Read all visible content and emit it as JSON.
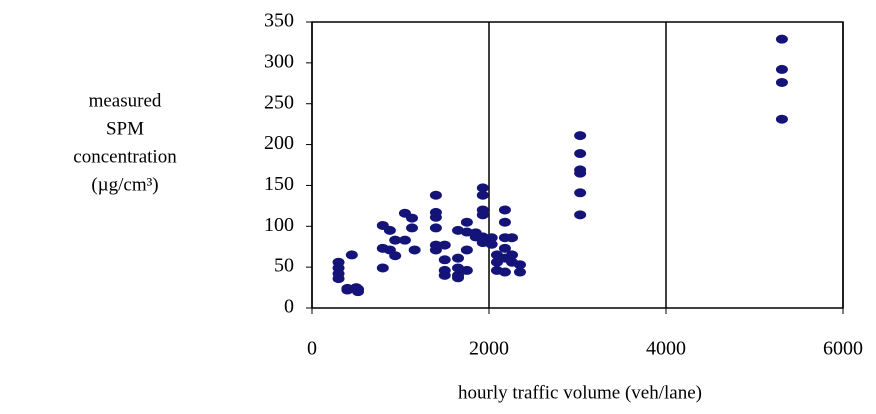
{
  "chart_data": {
    "type": "scatter",
    "y_label": [
      "measured",
      "SPM",
      "concentration",
      "(µg/cm³)"
    ],
    "x_label": "hourly traffic volume (veh/lane)",
    "color": "#141478",
    "x": [
      300,
      300,
      300,
      300,
      400,
      400,
      450,
      520,
      520,
      500,
      800,
      800,
      800,
      880,
      880,
      940,
      940,
      1050,
      1050,
      1130,
      1130,
      1160,
      1400,
      1400,
      1400,
      1400,
      1400,
      1400,
      1500,
      1500,
      1500,
      1500,
      1650,
      1650,
      1650,
      1650,
      1650,
      1750,
      1750,
      1750,
      1750,
      1850,
      1850,
      1930,
      1930,
      1930,
      1930,
      1930,
      1930,
      2030,
      2030,
      2090,
      2090,
      2090,
      2180,
      2180,
      2180,
      2180,
      2180,
      2180,
      2260,
      2260,
      2260,
      2350,
      2350,
      3030,
      3030,
      3030,
      3030,
      3030,
      3030,
      5310,
      5310,
      5310,
      5310
    ],
    "y": [
      56,
      49,
      42,
      36,
      24,
      22,
      65,
      23,
      20,
      25,
      101,
      73,
      49,
      95,
      71,
      64,
      83,
      116,
      83,
      110,
      98,
      71,
      138,
      117,
      111,
      98,
      77,
      71,
      59,
      46,
      40,
      77,
      95,
      61,
      49,
      40,
      37,
      105,
      93,
      71,
      46,
      92,
      87,
      147,
      138,
      120,
      114,
      87,
      80,
      86,
      78,
      65,
      56,
      46,
      120,
      105,
      86,
      73,
      61,
      44,
      86,
      65,
      56,
      53,
      44,
      211,
      189,
      169,
      165,
      141,
      114,
      329,
      292,
      276,
      231
    ],
    "xlim": [
      0,
      6000
    ],
    "xticks": [
      0,
      2000,
      4000,
      6000
    ],
    "ylim": [
      0,
      350
    ],
    "yticks": [
      0,
      50,
      100,
      150,
      200,
      250,
      300,
      350
    ],
    "grid": "x"
  }
}
